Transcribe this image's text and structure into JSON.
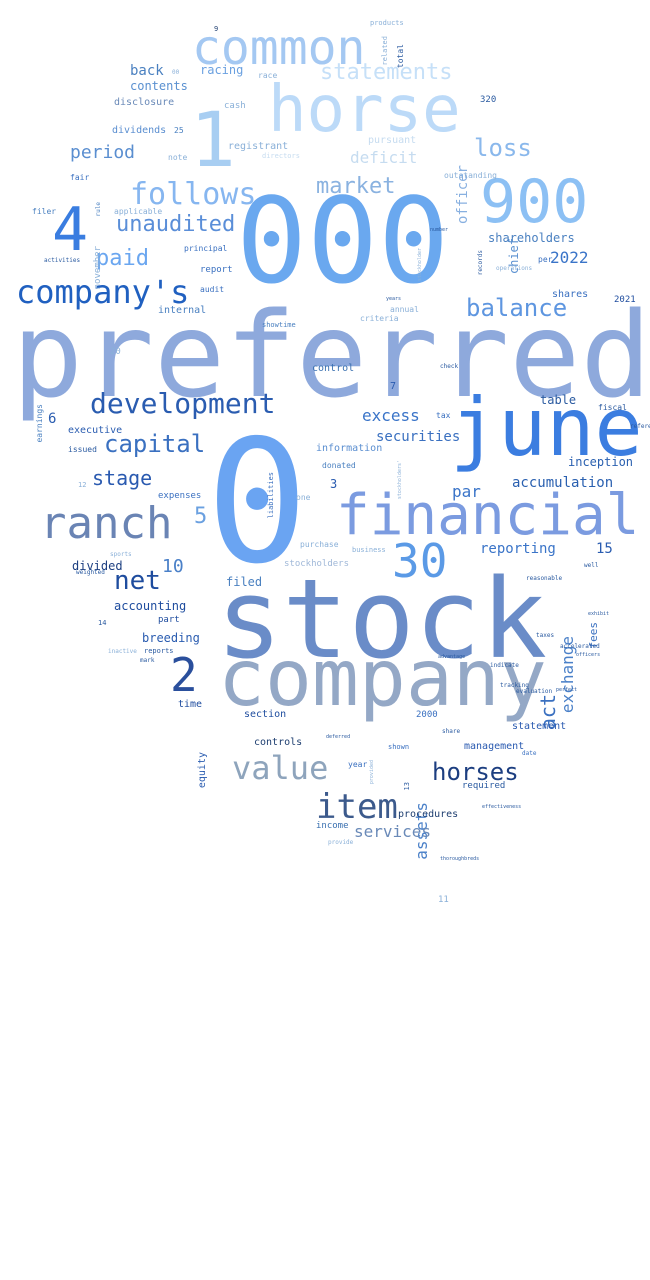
{
  "words": [
    {
      "text": "preferred",
      "c": "#8ea9dc",
      "vertical": false
    },
    {
      "text": "000",
      "c": "#6aa8ef",
      "vertical": false
    },
    {
      "text": "stock",
      "c": "#6a8cc8",
      "vertical": false
    },
    {
      "text": "0",
      "c": "#6aa4f2",
      "vertical": false
    },
    {
      "text": "company",
      "c": "#94a8c6",
      "vertical": false
    },
    {
      "text": "horse",
      "c": "#bcdaf8",
      "vertical": false
    },
    {
      "text": "june",
      "c": "#3b7de0",
      "vertical": false
    },
    {
      "text": "financial",
      "c": "#7b9be0",
      "vertical": false
    },
    {
      "text": "1",
      "c": "#a8cef2",
      "vertical": false
    },
    {
      "text": "900",
      "c": "#8cc0f4",
      "vertical": false
    },
    {
      "text": "common",
      "c": "#a4c8f2",
      "vertical": false
    },
    {
      "text": "ranch",
      "c": "#6a84b4",
      "vertical": false
    },
    {
      "text": "company's",
      "c": "#2060c0",
      "vertical": false
    },
    {
      "text": "4",
      "c": "#3a7de0",
      "vertical": false
    },
    {
      "text": "2",
      "c": "#2a4f9c",
      "vertical": false
    },
    {
      "text": "item",
      "c": "#3c5a8c",
      "vertical": false
    },
    {
      "text": "30",
      "c": "#5b9ae6",
      "vertical": false
    },
    {
      "text": "development",
      "c": "#2a5cb0",
      "vertical": false
    },
    {
      "text": "value",
      "c": "#8ea4bc",
      "vertical": false
    },
    {
      "text": "follows",
      "c": "#86b6f0",
      "vertical": false
    },
    {
      "text": "net",
      "c": "#1e4c9e",
      "vertical": false
    },
    {
      "text": "capital",
      "c": "#3a70c0",
      "vertical": false
    },
    {
      "text": "horses",
      "c": "#1c3e80",
      "vertical": false
    },
    {
      "text": "unaudited",
      "c": "#5a8ed8",
      "vertical": false
    },
    {
      "text": "loss",
      "c": "#8ab8ec",
      "vertical": false
    },
    {
      "text": "statements",
      "c": "#c6e0f8",
      "vertical": false
    },
    {
      "text": "balance",
      "c": "#5e96e0",
      "vertical": false
    },
    {
      "text": "market",
      "c": "#8ab2e0",
      "vertical": false
    },
    {
      "text": "paid",
      "c": "#6aa6f0",
      "vertical": false
    },
    {
      "text": "stage",
      "c": "#2a5ab0",
      "vertical": false
    },
    {
      "text": "period",
      "c": "#5a8ed0",
      "vertical": false
    },
    {
      "text": "deficit",
      "c": "#c6dcf0",
      "vertical": false
    },
    {
      "text": "act",
      "c": "#3a70c0",
      "vertical": true
    },
    {
      "text": "exchange",
      "c": "#4a80c8",
      "vertical": true
    },
    {
      "text": "assets",
      "c": "#4a80c8",
      "vertical": true
    },
    {
      "text": "officer",
      "c": "#88b0e0",
      "vertical": true
    },
    {
      "text": "excess",
      "c": "#3a74c8",
      "vertical": false
    },
    {
      "text": "services",
      "c": "#6a8ab8",
      "vertical": false
    },
    {
      "text": "securities",
      "c": "#3a70c0",
      "vertical": false
    },
    {
      "text": "5",
      "c": "#6aa0e0",
      "vertical": false
    },
    {
      "text": "10",
      "c": "#4a80c8",
      "vertical": false
    },
    {
      "text": "par",
      "c": "#3a74c8",
      "vertical": false
    },
    {
      "text": "2022",
      "c": "#3a74c8",
      "vertical": false
    },
    {
      "text": "accumulation",
      "c": "#2a60b0",
      "vertical": false
    },
    {
      "text": "back",
      "c": "#4a80c0",
      "vertical": false
    },
    {
      "text": "contents",
      "c": "#5a90d0",
      "vertical": false
    },
    {
      "text": "racing",
      "c": "#6aa0e0",
      "vertical": false
    },
    {
      "text": "shareholders",
      "c": "#4a80c0",
      "vertical": false
    },
    {
      "text": "table",
      "c": "#2a5aa0",
      "vertical": false
    },
    {
      "text": "reporting",
      "c": "#3a74c8",
      "vertical": false
    },
    {
      "text": "inception",
      "c": "#2a60b0",
      "vertical": false
    },
    {
      "text": "accounting",
      "c": "#1e4c9e",
      "vertical": false
    },
    {
      "text": "breeding",
      "c": "#2a5cb0",
      "vertical": false
    },
    {
      "text": "filed",
      "c": "#4a80c0",
      "vertical": false
    },
    {
      "text": "divided",
      "c": "#1c3e80",
      "vertical": false
    },
    {
      "text": "dividends",
      "c": "#5a8ed0",
      "vertical": false
    },
    {
      "text": "executive",
      "c": "#2a5cb0",
      "vertical": false
    },
    {
      "text": "internal",
      "c": "#4a80c0",
      "vertical": false
    },
    {
      "text": "disclosure",
      "c": "#6a8ab8",
      "vertical": false
    },
    {
      "text": "registrant",
      "c": "#8ab0d8",
      "vertical": false
    },
    {
      "text": "information",
      "c": "#5a8ed0",
      "vertical": false
    },
    {
      "text": "statement",
      "c": "#2a5ab0",
      "vertical": false
    },
    {
      "text": "management",
      "c": "#2a5ab0",
      "vertical": false
    },
    {
      "text": "controls",
      "c": "#1e3e70",
      "vertical": false
    },
    {
      "text": "procedures",
      "c": "#1e3e70",
      "vertical": false
    },
    {
      "text": "section",
      "c": "#1e4c9e",
      "vertical": false
    },
    {
      "text": "control",
      "c": "#3a70b0",
      "vertical": false
    },
    {
      "text": "expenses",
      "c": "#3a70c0",
      "vertical": false
    },
    {
      "text": "stockholders",
      "c": "#a0b8d8",
      "vertical": false
    },
    {
      "text": "income",
      "c": "#3a70b0",
      "vertical": false
    },
    {
      "text": "required",
      "c": "#2a5aa0",
      "vertical": false
    },
    {
      "text": "shares",
      "c": "#3a70c0",
      "vertical": false
    },
    {
      "text": "fees",
      "c": "#3a70c0",
      "vertical": true
    },
    {
      "text": "15",
      "c": "#2a5cb0",
      "vertical": false
    },
    {
      "text": "6",
      "c": "#2a5cb0",
      "vertical": false
    },
    {
      "text": "3",
      "c": "#2a5cb0",
      "vertical": false
    },
    {
      "text": "7",
      "c": "#2a5cb0",
      "vertical": false
    },
    {
      "text": "chief",
      "c": "#5a90d0",
      "vertical": true
    },
    {
      "text": "equity",
      "c": "#2a5cb0",
      "vertical": true
    },
    {
      "text": "time",
      "c": "#1e4c9e",
      "vertical": false
    },
    {
      "text": "pursuant",
      "c": "#c6dcf0",
      "vertical": false
    },
    {
      "text": "note",
      "c": "#8ab0d8",
      "vertical": false
    },
    {
      "text": "fair",
      "c": "#3a70c0",
      "vertical": false
    },
    {
      "text": "filer",
      "c": "#4a80c0",
      "vertical": false
    },
    {
      "text": "applicable",
      "c": "#8ab0d8",
      "vertical": false
    },
    {
      "text": "report",
      "c": "#3a70c0",
      "vertical": false
    },
    {
      "text": "audit",
      "c": "#3a70c0",
      "vertical": false
    },
    {
      "text": "annual",
      "c": "#8ab0d8",
      "vertical": false
    },
    {
      "text": "criteria",
      "c": "#8ab0d8",
      "vertical": false
    },
    {
      "text": "showtime",
      "c": "#4a80c0",
      "vertical": false
    },
    {
      "text": "tax",
      "c": "#3a70c0",
      "vertical": false
    },
    {
      "text": "fiscal",
      "c": "#2a5aa0",
      "vertical": false
    },
    {
      "text": "issued",
      "c": "#2a5aa0",
      "vertical": false
    },
    {
      "text": "donated",
      "c": "#4a80c0",
      "vertical": false
    },
    {
      "text": "purchase",
      "c": "#8ab0d8",
      "vertical": false
    },
    {
      "text": "business",
      "c": "#8ab0d8",
      "vertical": false
    },
    {
      "text": "one",
      "c": "#8ab0d8",
      "vertical": false
    },
    {
      "text": "part",
      "c": "#1e4c9e",
      "vertical": false
    },
    {
      "text": "reports",
      "c": "#2a5aa0",
      "vertical": false
    },
    {
      "text": "mark",
      "c": "#2a5aa0",
      "vertical": false
    },
    {
      "text": "inactive",
      "c": "#8ab0d8",
      "vertical": false
    },
    {
      "text": "year",
      "c": "#3a70c0",
      "vertical": false
    },
    {
      "text": "shown",
      "c": "#3a70c0",
      "vertical": false
    },
    {
      "text": "provide",
      "c": "#8ab0d8",
      "vertical": false
    },
    {
      "text": "share",
      "c": "#2a5aa0",
      "vertical": false
    },
    {
      "text": "indicate",
      "c": "#2a5aa0",
      "vertical": false
    },
    {
      "text": "taxes",
      "c": "#2a5aa0",
      "vertical": false
    },
    {
      "text": "date",
      "c": "#3a70c0",
      "vertical": false
    },
    {
      "text": "cash",
      "c": "#8ab0d8",
      "vertical": false
    },
    {
      "text": "race",
      "c": "#8ab0d8",
      "vertical": false
    },
    {
      "text": "directors",
      "c": "#c6dcf0",
      "vertical": false
    },
    {
      "text": "outstanding",
      "c": "#8ab0d8",
      "vertical": false
    },
    {
      "text": "principal",
      "c": "#3a70c0",
      "vertical": false
    },
    {
      "text": "per",
      "c": "#3a70c0",
      "vertical": false
    },
    {
      "text": "earnings",
      "c": "#4a80c0",
      "vertical": true
    },
    {
      "text": "liabilities",
      "c": "#3a70c0",
      "vertical": true
    },
    {
      "text": "november",
      "c": "#8ab0d8",
      "vertical": true
    },
    {
      "text": "2000",
      "c": "#3a70c0",
      "vertical": false
    },
    {
      "text": "2021",
      "c": "#1e4c9e",
      "vertical": false
    },
    {
      "text": "320",
      "c": "#2a5aa0",
      "vertical": false
    },
    {
      "text": "20",
      "c": "#8ab0d8",
      "vertical": false
    },
    {
      "text": "12",
      "c": "#8ab0d8",
      "vertical": false
    },
    {
      "text": "14",
      "c": "#2a5aa0",
      "vertical": false
    },
    {
      "text": "9",
      "c": "#1e3e70",
      "vertical": false
    },
    {
      "text": "11",
      "c": "#8ab0d8",
      "vertical": false
    },
    {
      "text": "13",
      "c": "#2a5aa0",
      "vertical": true
    },
    {
      "text": "25",
      "c": "#4a80c0",
      "vertical": false
    },
    {
      "text": "00",
      "c": "#8ab0d8",
      "vertical": false
    },
    {
      "text": "products",
      "c": "#8ab0d8",
      "vertical": false
    },
    {
      "text": "related",
      "c": "#8ab0d8",
      "vertical": true
    },
    {
      "text": "total",
      "c": "#2a5aa0",
      "vertical": true
    },
    {
      "text": "rule",
      "c": "#4a80c0",
      "vertical": true
    },
    {
      "text": "records",
      "c": "#2a5aa0",
      "vertical": true
    },
    {
      "text": "operations",
      "c": "#8ab0d8",
      "vertical": false
    },
    {
      "text": "activities",
      "c": "#2a5aa0",
      "vertical": false
    },
    {
      "text": "reference",
      "c": "#2a5aa0",
      "vertical": false
    },
    {
      "text": "well",
      "c": "#2a5aa0",
      "vertical": false
    },
    {
      "text": "check",
      "c": "#2a5aa0",
      "vertical": false
    },
    {
      "text": "sports",
      "c": "#8ab0d8",
      "vertical": false
    },
    {
      "text": "weighted",
      "c": "#2a5aa0",
      "vertical": false
    },
    {
      "text": "accelerated",
      "c": "#2a5aa0",
      "vertical": false
    },
    {
      "text": "reasonable",
      "c": "#2a5aa0",
      "vertical": false
    },
    {
      "text": "evaluation",
      "c": "#2a5aa0",
      "vertical": false
    },
    {
      "text": "tracking",
      "c": "#2a5aa0",
      "vertical": false
    },
    {
      "text": "advantage",
      "c": "#2a5aa0",
      "vertical": false
    },
    {
      "text": "effectiveness",
      "c": "#2a5aa0",
      "vertical": false
    },
    {
      "text": "deferred",
      "c": "#2a5aa0",
      "vertical": false
    },
    {
      "text": "thoroughbreds",
      "c": "#2a5aa0",
      "vertical": false
    },
    {
      "text": "exhibit",
      "c": "#2a5aa0",
      "vertical": false
    },
    {
      "text": "officers",
      "c": "#2a5aa0",
      "vertical": false
    },
    {
      "text": "perfect",
      "c": "#2a5aa0",
      "vertical": false
    },
    {
      "text": "years",
      "c": "#2a5aa0",
      "vertical": false
    },
    {
      "text": "number",
      "c": "#2a5aa0",
      "vertical": false
    },
    {
      "text": "stockholder",
      "c": "#8ab0d8",
      "vertical": true
    },
    {
      "text": "stockholders'",
      "c": "#8ab0d8",
      "vertical": true
    },
    {
      "text": "provided",
      "c": "#8ab0d8",
      "vertical": true
    },
    {
      "text": "regarding",
      "c": "#2a5aa0",
      "vertical": true
    }
  ]
}
